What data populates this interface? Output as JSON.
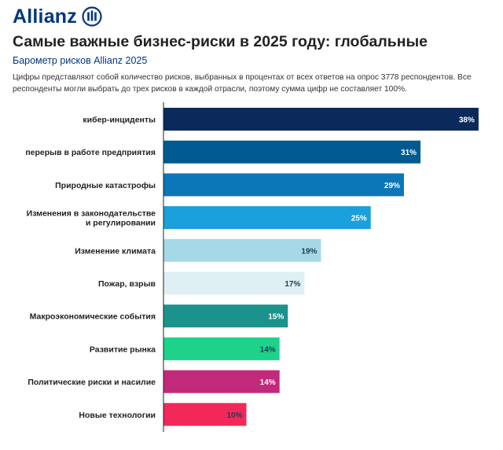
{
  "brand": {
    "name": "Allianz",
    "color": "#003781"
  },
  "header": {
    "title": "Самые важные бизнес-риски в 2025 году: глобальные",
    "subtitle": "Барометр рисков Allianz 2025",
    "note": "Цифры представляют собой количество рисков, выбранных в процентах от всех ответов на опрос 3778 респондентов. Все респонденты могли выбрать до трех рисков в каждой отрасли, поэтому сумма цифр не составляет 100%."
  },
  "chart_data": {
    "type": "bar",
    "orientation": "horizontal",
    "value_suffix": "%",
    "xlim": [
      0,
      40
    ],
    "grid": false,
    "categories": [
      "кибер-инциденты",
      "перерыв в работе предприятия",
      "Природные катастрофы",
      "Изменения в законодательстве и регулировании",
      "Изменение климата",
      "Пожар, взрыв",
      "Макроэкономические события",
      "Развитие рынка",
      "Политические риски и насилие",
      "Новые технологии"
    ],
    "label_lines": [
      [
        "кибер-инциденты"
      ],
      [
        "перерыв в работе предприятия"
      ],
      [
        "Природные катастрофы"
      ],
      [
        "Изменения в законодательстве",
        "и регулировании"
      ],
      [
        "Изменение климата"
      ],
      [
        "Пожар, взрыв"
      ],
      [
        "Макроэкономические события"
      ],
      [
        "Развитие рынка"
      ],
      [
        "Политические риски и насилие"
      ],
      [
        "Новые технологии"
      ]
    ],
    "values": [
      38,
      31,
      29,
      25,
      19,
      17,
      15,
      14,
      14,
      10
    ],
    "colors": [
      "#0b2a5b",
      "#005a8f",
      "#0b76b8",
      "#1aa0da",
      "#a6d9e7",
      "#dff0f5",
      "#1b938c",
      "#1ed28c",
      "#c2297a",
      "#f2275a"
    ],
    "label_colors": [
      "#ffffff",
      "#ffffff",
      "#ffffff",
      "#ffffff",
      "#1f3b5a",
      "#1f3b5a",
      "#ffffff",
      "#1f3b5a",
      "#ffffff",
      "#1f3b5a"
    ]
  }
}
